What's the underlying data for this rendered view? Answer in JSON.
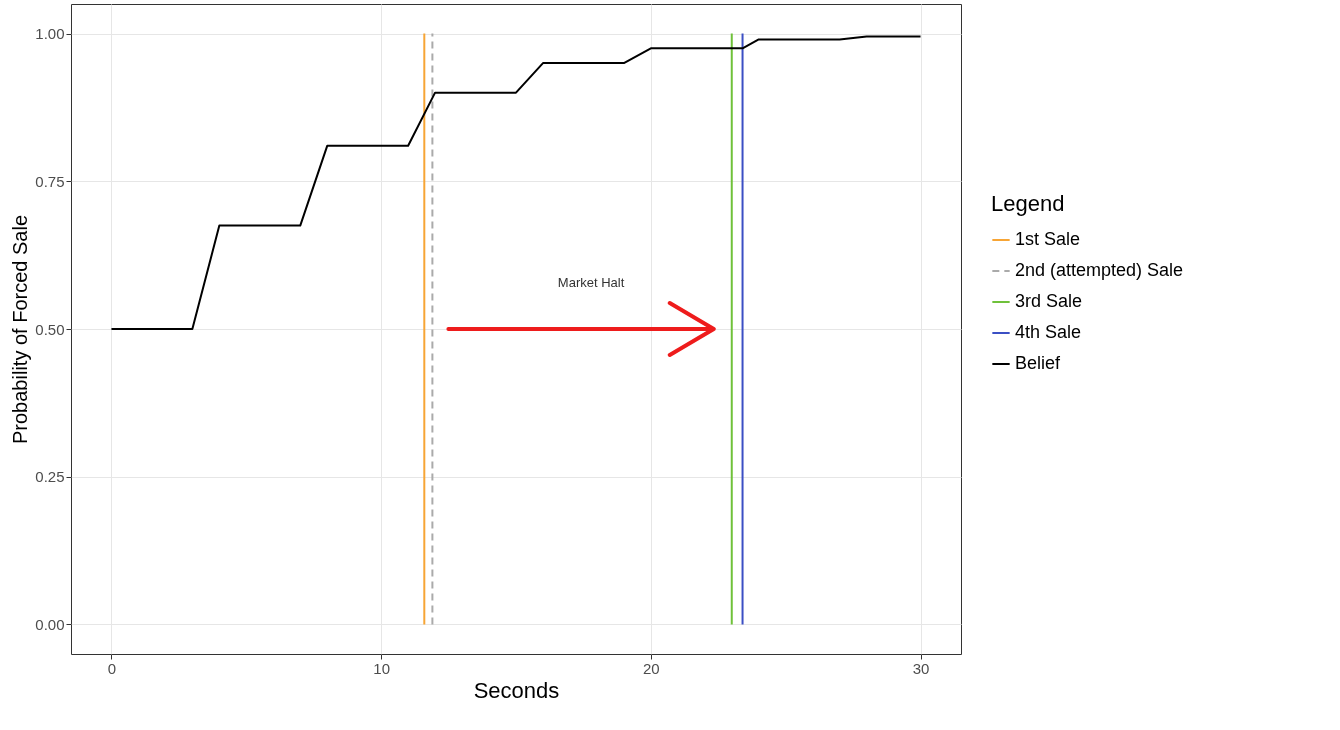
{
  "chart_data": {
    "type": "line",
    "xlabel": "Seconds",
    "ylabel": "Probability of Forced Sale",
    "legend_title": "Legend",
    "legend": "right",
    "grid": true,
    "xlim": [
      -1.5,
      31.5
    ],
    "xticks": [
      0,
      10,
      20,
      30
    ],
    "ylim": [
      -0.05,
      1.05
    ],
    "yticks": [
      {
        "value": 0,
        "label": "0.00"
      },
      {
        "value": 0.25,
        "label": "0.25"
      },
      {
        "value": 0.5,
        "label": "0.50"
      },
      {
        "value": 0.75,
        "label": "0.75"
      },
      {
        "value": 1,
        "label": "1.00"
      }
    ],
    "annotations": [
      "Market Halt"
    ],
    "series": [
      {
        "name": "1st Sale",
        "color": "#f7a535",
        "line_style": "solid",
        "x": [
          11.6,
          11.6
        ],
        "values": [
          0,
          1
        ]
      },
      {
        "name": "2nd (attempted) Sale",
        "color": "#aaaaaa",
        "line_style": "dashed",
        "x": [
          11.9,
          11.9
        ],
        "values": [
          0,
          1
        ]
      },
      {
        "name": "3rd Sale",
        "color": "#6fc13a",
        "line_style": "solid",
        "x": [
          23,
          23
        ],
        "values": [
          0,
          1
        ]
      },
      {
        "name": "4th Sale",
        "color": "#3b4fc4",
        "line_style": "solid",
        "x": [
          23.4,
          23.4
        ],
        "values": [
          0,
          1
        ]
      },
      {
        "name": "Belief",
        "color": "#000000",
        "line_style": "solid",
        "x": [
          0,
          3,
          4,
          7,
          8,
          11,
          12,
          15,
          16,
          19,
          20,
          23.4,
          24,
          27,
          28,
          30
        ],
        "values": [
          0.5,
          0.5,
          0.675,
          0.675,
          0.81,
          0.81,
          0.9,
          0.9,
          0.95,
          0.95,
          0.975,
          0.975,
          0.99,
          0.99,
          0.995,
          0.995
        ]
      }
    ]
  }
}
